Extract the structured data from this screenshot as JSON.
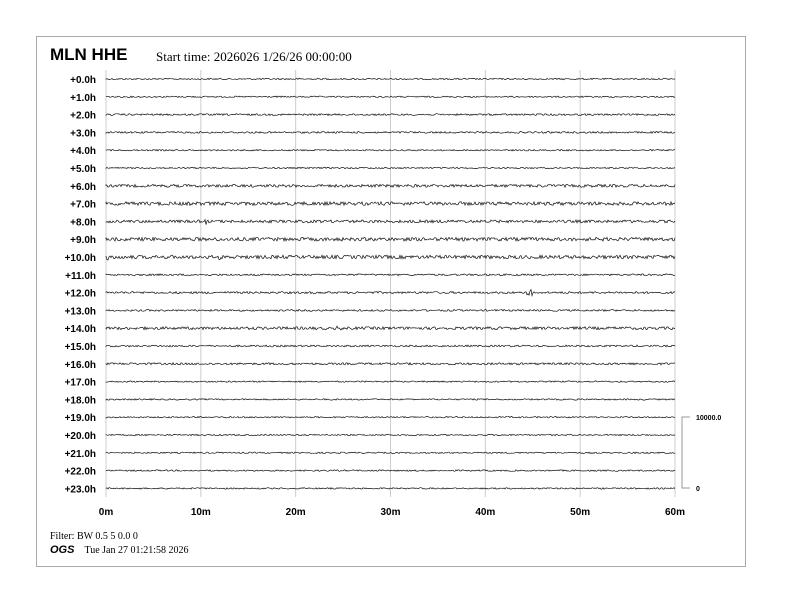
{
  "header": {
    "station": "MLN HHE",
    "start_time": "Start time: 2026026  1/26/26 00:00:00"
  },
  "chart_data": {
    "type": "line",
    "title": "MLN HHE",
    "row_labels": [
      "+0.0h",
      "+1.0h",
      "+2.0h",
      "+3.0h",
      "+4.0h",
      "+5.0h",
      "+6.0h",
      "+7.0h",
      "+8.0h",
      "+9.0h",
      "+10.0h",
      "+11.0h",
      "+12.0h",
      "+13.0h",
      "+14.0h",
      "+15.0h",
      "+16.0h",
      "+17.0h",
      "+18.0h",
      "+19.0h",
      "+20.0h",
      "+21.0h",
      "+22.0h",
      "+23.0h"
    ],
    "x_ticks": [
      "0m",
      "10m",
      "20m",
      "30m",
      "40m",
      "50m",
      "60m"
    ],
    "xlim": [
      0,
      60
    ],
    "grid": true,
    "scale": {
      "top": "10000.0",
      "bottom": "0"
    },
    "events": [
      {
        "row": 8,
        "minute": 10.5,
        "amplitude": 0.3
      },
      {
        "row": 10,
        "minute": 0.3,
        "amplitude": 0.3
      },
      {
        "row": 10,
        "minute": 12.2,
        "amplitude": 0.3
      },
      {
        "row": 12,
        "minute": 44.7,
        "amplitude": 0.6
      },
      {
        "row": 14,
        "minute": 24.5,
        "amplitude": 0.15
      },
      {
        "row": 9,
        "minute": 45.5,
        "amplitude": 0.15
      }
    ],
    "noise_level_by_row": [
      0.04,
      0.04,
      0.05,
      0.05,
      0.04,
      0.04,
      0.08,
      0.1,
      0.08,
      0.1,
      0.1,
      0.05,
      0.06,
      0.05,
      0.08,
      0.05,
      0.06,
      0.04,
      0.04,
      0.04,
      0.04,
      0.04,
      0.04,
      0.04
    ]
  },
  "footer": {
    "filter": "Filter: BW 0.5 5 0.0 0",
    "org": "OGS",
    "timestamp": "Tue Jan 27 01:21:58 2026"
  },
  "colors": {
    "trace": "#111111",
    "grid": "#cccccc"
  }
}
